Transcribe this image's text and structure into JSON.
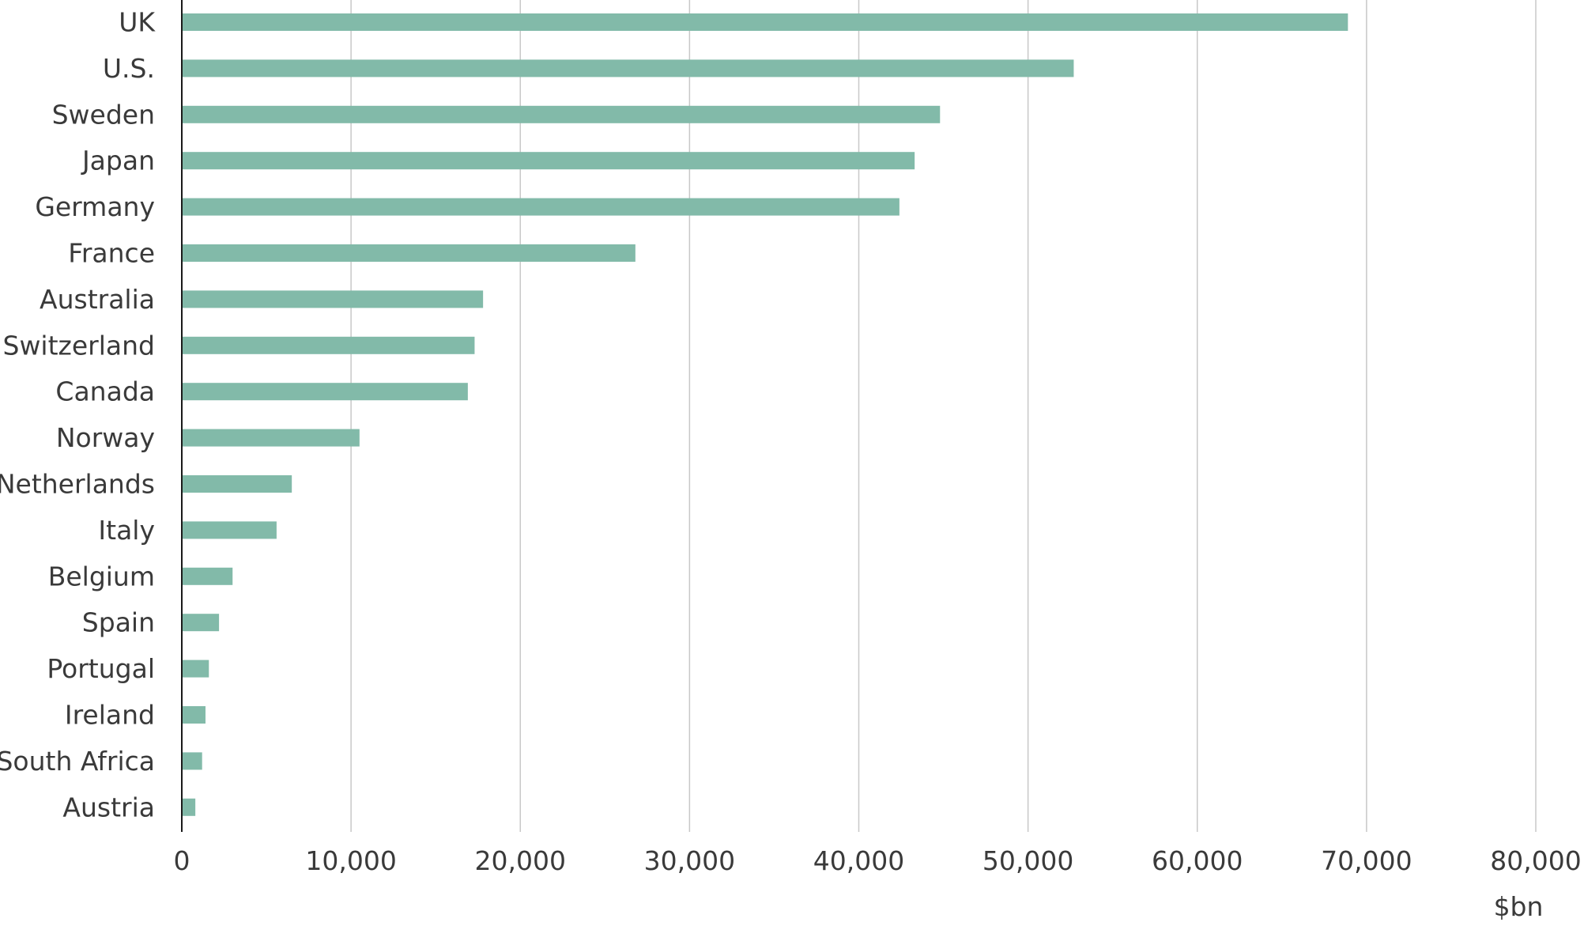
{
  "chart_data": {
    "type": "bar",
    "orientation": "horizontal",
    "categories": [
      "UK",
      "U.S.",
      "Sweden",
      "Japan",
      "Germany",
      "France",
      "Australia",
      "Switzerland",
      "Canada",
      "Norway",
      "Netherlands",
      "Italy",
      "Belgium",
      "Spain",
      "Portugal",
      "Ireland",
      "South Africa",
      "Austria"
    ],
    "values": [
      68900,
      52700,
      44800,
      43300,
      42400,
      26800,
      17800,
      17300,
      16900,
      10500,
      6500,
      5600,
      3000,
      2200,
      1600,
      1400,
      1200,
      800
    ],
    "xlim": [
      0,
      80000
    ],
    "xticks": [
      0,
      10000,
      20000,
      30000,
      40000,
      50000,
      60000,
      70000,
      80000
    ],
    "xtick_labels": [
      "0",
      "10,000",
      "20,000",
      "30,000",
      "40,000",
      "50,000",
      "60,000",
      "70,000",
      "80,000"
    ],
    "unit_label": "$bn",
    "grid": "vertical",
    "legend": "none",
    "bar_color": "#82baa9",
    "title": "",
    "xlabel": "",
    "ylabel": ""
  }
}
